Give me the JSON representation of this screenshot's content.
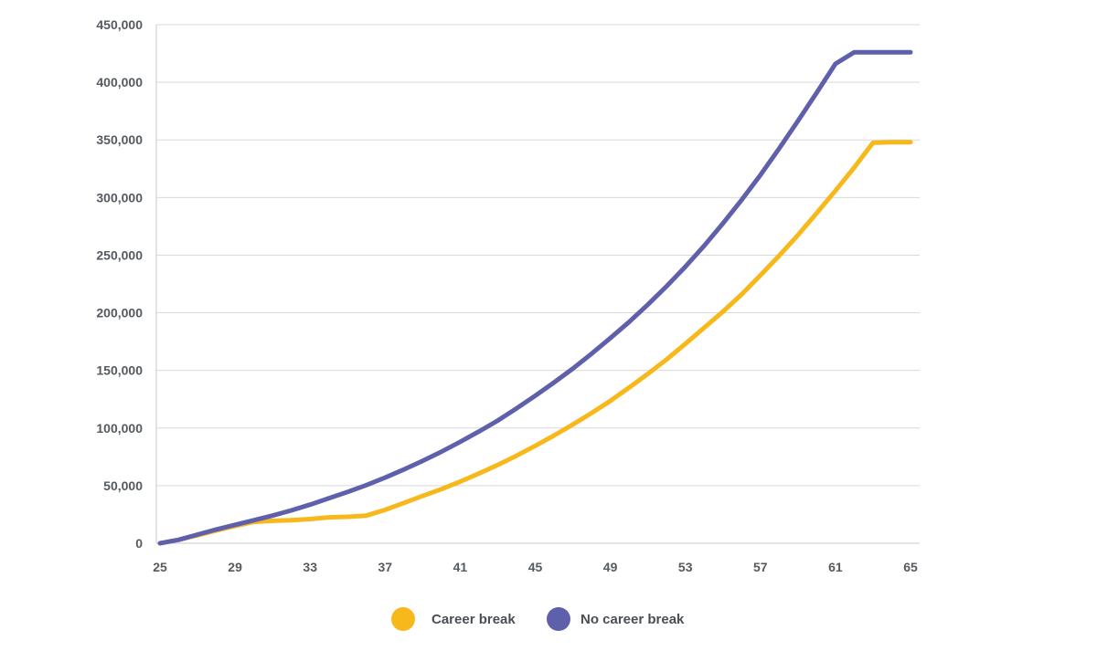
{
  "chart_data": {
    "type": "line",
    "title": "",
    "xlabel": "",
    "ylabel": "",
    "xlim": [
      25,
      65
    ],
    "ylim": [
      0,
      450000
    ],
    "x_ticks": [
      25,
      29,
      33,
      37,
      41,
      45,
      49,
      53,
      57,
      61,
      65
    ],
    "x_tick_labels": [
      "25",
      "29",
      "33",
      "37",
      "41",
      "45",
      "49",
      "53",
      "57",
      "61",
      "65"
    ],
    "y_ticks": [
      0,
      50000,
      100000,
      150000,
      200000,
      250000,
      300000,
      350000,
      400000,
      450000
    ],
    "y_tick_labels": [
      "0",
      "50,000",
      "100,000",
      "150,000",
      "200,000",
      "250,000",
      "300,000",
      "350,000",
      "400,000",
      "450,000"
    ],
    "grid": true,
    "legend_position": "bottom-center",
    "series": [
      {
        "name": "Career break",
        "color": "#F7B81B",
        "x": [
          26,
          27,
          28,
          29,
          30,
          31,
          32,
          33,
          34,
          35,
          36,
          37,
          38,
          39,
          40,
          41,
          42,
          43,
          44,
          45,
          46,
          47,
          48,
          49,
          50,
          51,
          52,
          53,
          54,
          55,
          56,
          57,
          58,
          59,
          60,
          61,
          62,
          63,
          64,
          65
        ],
        "values": [
          3000,
          7000,
          11000,
          15000,
          18500,
          19500,
          20000,
          21000,
          22500,
          23000,
          24000,
          29000,
          35000,
          41000,
          47000,
          53500,
          60500,
          68000,
          76000,
          84500,
          93500,
          103000,
          113000,
          123500,
          135000,
          147000,
          159500,
          173000,
          187000,
          201000,
          216000,
          232500,
          249500,
          267500,
          286500,
          306000,
          326000,
          347500,
          348000,
          348000
        ]
      },
      {
        "name": "No career break",
        "color": "#5F60AC",
        "x": [
          25,
          26,
          27,
          28,
          29,
          30,
          31,
          32,
          33,
          34,
          35,
          36,
          37,
          38,
          39,
          40,
          41,
          42,
          43,
          44,
          45,
          46,
          47,
          48,
          49,
          50,
          51,
          52,
          53,
          54,
          55,
          56,
          57,
          58,
          59,
          60,
          61,
          62,
          63,
          64,
          65
        ],
        "values": [
          0,
          3000,
          7500,
          12000,
          16000,
          20000,
          24000,
          28500,
          33500,
          39000,
          44500,
          50500,
          57000,
          64000,
          71500,
          79500,
          88000,
          97000,
          106500,
          117000,
          128000,
          139500,
          151500,
          164500,
          178000,
          192000,
          207000,
          223000,
          240000,
          258000,
          277500,
          298000,
          319500,
          342500,
          366500,
          391000,
          416000,
          426000,
          426000,
          426000,
          426000
        ]
      }
    ]
  }
}
